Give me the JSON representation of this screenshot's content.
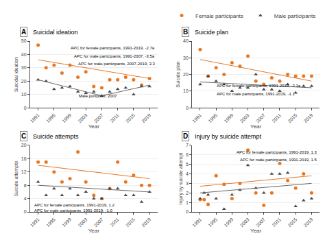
{
  "chart_data": [
    {
      "type": "scatter",
      "label": "A",
      "title": "Suicidal ideation",
      "xlabel": "Year",
      "ylabel": "Suicidal ideation",
      "xlim": [
        1989,
        2021
      ],
      "xticks": [
        1991,
        1995,
        1999,
        2003,
        2007,
        2011,
        2015,
        2019
      ],
      "ylim": [
        0,
        50
      ],
      "yticks": [
        0,
        10,
        20,
        30,
        40,
        50
      ],
      "grid": "y",
      "series": [
        {
          "type": "scatter",
          "marker": "circle",
          "color": "#E87722",
          "x": [
            1991,
            1993,
            1995,
            1997,
            1999,
            2001,
            2003,
            2005,
            2007,
            2009,
            2011,
            2013,
            2015,
            2017,
            2019
          ],
          "values": [
            47,
            30,
            32,
            26,
            32,
            23,
            27,
            16,
            15,
            21,
            21,
            23,
            21,
            17,
            22
          ]
        },
        {
          "type": "scatter",
          "marker": "triangle-up",
          "color": "#4a4a4a",
          "x": [
            1991,
            1993,
            1995,
            1997,
            1999,
            2001,
            2003,
            2005,
            2007,
            2009,
            2011,
            2013,
            2015,
            2017,
            2019
          ],
          "values": [
            21,
            20,
            14,
            15,
            16,
            12,
            11,
            12,
            9,
            12,
            14,
            15,
            10,
            16,
            16
          ]
        },
        {
          "type": "line",
          "color": "#E87722",
          "x": [
            1991,
            2019
          ],
          "values": [
            36,
            22
          ]
        },
        {
          "type": "line",
          "color": "#666666",
          "x": [
            1991,
            2007
          ],
          "values": [
            21,
            9
          ]
        },
        {
          "type": "line",
          "color": "#666666",
          "x": [
            2007,
            2019
          ],
          "values": [
            9,
            17
          ]
        }
      ],
      "annotations": [
        {
          "text": "APC for female participants, 1991-2019, -2.7a"
        },
        {
          "text": "APC for male participants, 1991-2007, -3.5a"
        },
        {
          "text": "APC for male participants, 2007-2019, 3.3"
        },
        {
          "text": "Male jointpoint: 2007",
          "x": 2006,
          "y": 6
        }
      ]
    },
    {
      "type": "scatter",
      "label": "B",
      "title": "Suicide plan",
      "xlabel": "Year",
      "ylabel": "Suicide plan",
      "xlim": [
        1989,
        2021
      ],
      "xticks": [
        1991,
        1995,
        1999,
        2003,
        2007,
        2011,
        2015,
        2019
      ],
      "ylim": [
        0,
        40
      ],
      "yticks": [
        0,
        10,
        20,
        30,
        40
      ],
      "grid": "y",
      "legend": "upper right",
      "series": [
        {
          "name": "Female participants",
          "type": "scatter",
          "marker": "circle",
          "color": "#E87722",
          "x": [
            1991,
            1993,
            1995,
            1997,
            1999,
            2001,
            2003,
            2005,
            2007,
            2009,
            2011,
            2013,
            2015,
            2017,
            2019
          ],
          "values": [
            35,
            19,
            24,
            20,
            27,
            25,
            31,
            16,
            14,
            18,
            16,
            20,
            19,
            19,
            19
          ]
        },
        {
          "name": "Male participants",
          "type": "scatter",
          "marker": "triangle-up",
          "color": "#4a4a4a",
          "x": [
            1991,
            1993,
            1995,
            1997,
            1999,
            2001,
            2003,
            2005,
            2007,
            2009,
            2011,
            2013,
            2015,
            2017,
            2019
          ],
          "values": [
            14,
            19,
            16,
            14,
            10,
            12,
            12,
            20,
            11,
            11,
            10,
            14,
            9,
            13,
            13
          ]
        },
        {
          "type": "line",
          "color": "#E87722",
          "x": [
            1991,
            2019
          ],
          "values": [
            29,
            16
          ]
        },
        {
          "type": "line",
          "color": "#666666",
          "x": [
            1991,
            2019
          ],
          "values": [
            15.5,
            12
          ]
        }
      ],
      "annotations": [
        {
          "text": "APC for female participants, 1991-2019, -2.1a"
        },
        {
          "text": "APC for male participants, 1991-2019, -1.1"
        }
      ]
    },
    {
      "type": "scatter",
      "label": "C",
      "title": "Suicide attempts",
      "xlabel": "Year",
      "ylabel": "Suicide attempts",
      "xlim": [
        1989,
        2021
      ],
      "xticks": [
        1991,
        1995,
        1999,
        2003,
        2007,
        2011,
        2015,
        2019
      ],
      "ylim": [
        0,
        20
      ],
      "yticks": [
        0,
        4,
        8,
        12,
        16,
        20
      ],
      "grid": "y",
      "series": [
        {
          "type": "scatter",
          "marker": "circle",
          "color": "#E87722",
          "x": [
            1991,
            1993,
            1995,
            1997,
            1999,
            2001,
            2003,
            2005,
            2007,
            2009,
            2011,
            2013,
            2015,
            2017,
            2019
          ],
          "values": [
            15,
            15,
            12,
            9,
            10,
            18,
            9,
            5,
            4,
            7,
            15,
            9,
            11,
            8,
            8
          ]
        },
        {
          "type": "scatter",
          "marker": "triangle-up",
          "color": "#4a4a4a",
          "x": [
            1991,
            1993,
            1995,
            1997,
            1999,
            2001,
            2003,
            2005,
            2007,
            2009,
            2011,
            2013,
            2015,
            2017,
            2019
          ],
          "values": [
            9,
            5,
            7,
            5,
            7,
            5,
            6,
            4,
            4,
            7,
            7,
            5,
            5,
            3,
            6
          ]
        },
        {
          "type": "line",
          "color": "#E87722",
          "x": [
            1991,
            2019
          ],
          "values": [
            14,
            10
          ]
        },
        {
          "type": "line",
          "color": "#666666",
          "x": [
            1991,
            2019
          ],
          "values": [
            8,
            6
          ]
        }
      ],
      "annotations": [
        {
          "text": "APC for female participants, 1991-2019, 1.2"
        },
        {
          "text": "APC for male participants, 1991-2019, -1.0"
        }
      ]
    },
    {
      "type": "scatter",
      "label": "D",
      "title": "Injury by suicide attempt",
      "xlabel": "Year",
      "ylabel": "Injury by suicide attempt",
      "xlim": [
        1989,
        2021
      ],
      "xticks": [
        1991,
        1995,
        1999,
        2003,
        2007,
        2011,
        2015,
        2019
      ],
      "ylim": [
        0,
        7
      ],
      "yticks": [
        0,
        1,
        2,
        3,
        4,
        5,
        6,
        7
      ],
      "grid": "y",
      "series": [
        {
          "type": "scatter",
          "marker": "circle",
          "color": "#E87722",
          "x": [
            1991,
            1992,
            1993,
            1995,
            1997,
            1999,
            2001,
            2003,
            2005,
            2007,
            2009,
            2011,
            2013,
            2015,
            2017,
            2019
          ],
          "values": [
            1.3,
            1.3,
            0.8,
            3.8,
            2.9,
            1.4,
            3.0,
            6.5,
            2.0,
            0.7,
            2.0,
            5.1,
            3.3,
            2.5,
            4.0,
            2.0
          ]
        },
        {
          "type": "scatter",
          "marker": "triangle-up",
          "color": "#4a4a4a",
          "x": [
            1991,
            1992,
            1993,
            1995,
            1997,
            1999,
            2001,
            2003,
            2005,
            2007,
            2009,
            2011,
            2013,
            2015,
            2017,
            2019
          ],
          "values": [
            1.4,
            2.0,
            1.8,
            1.4,
            0.3,
            1.8,
            2.3,
            4.9,
            2.5,
            2.0,
            4.0,
            4.0,
            4.1,
            0.6,
            1.2,
            1.4
          ]
        },
        {
          "type": "line",
          "color": "#E87722",
          "x": [
            1991,
            2019
          ],
          "values": [
            2.7,
            3.8
          ]
        },
        {
          "type": "line",
          "color": "#666666",
          "x": [
            1991,
            2019
          ],
          "values": [
            2.0,
            3.0
          ]
        }
      ],
      "annotations": [
        {
          "text": "APC for female participants, 1991-2019, 1.3"
        },
        {
          "text": "APC for male participants, 1991-2019, 1.5"
        }
      ]
    }
  ]
}
